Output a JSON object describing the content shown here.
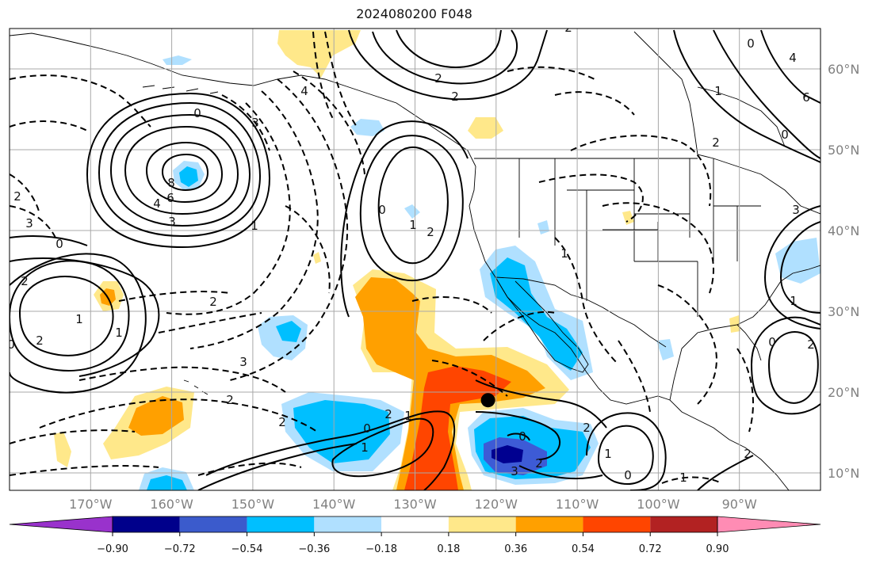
{
  "title": "2024080200 F048",
  "map": {
    "lon_labels": [
      "170°W",
      "160°W",
      "150°W",
      "140°W",
      "130°W",
      "120°W",
      "110°W",
      "100°W",
      "90°W"
    ],
    "lat_labels": [
      "60°N",
      "50°N",
      "40°N",
      "30°N",
      "20°N",
      "10°N"
    ],
    "contour_labels": [
      "2",
      "4",
      "2",
      "3",
      "2",
      "0",
      "8",
      "6",
      "4",
      "3",
      "1",
      "0",
      "2",
      "3",
      "2",
      "1",
      "0",
      "2",
      "1",
      "2",
      "3",
      "2",
      "2",
      "0",
      "1",
      "2",
      "1",
      "2",
      "0",
      "1",
      "0",
      "2",
      "3",
      "2",
      "1",
      "0",
      "1",
      "2",
      "0",
      "1",
      "2",
      "3",
      "6",
      "4",
      "0",
      "1",
      "2",
      "0",
      "1"
    ],
    "marker": {
      "name": "point-marker",
      "lon": -121,
      "lat": 19
    },
    "colors": {
      "shade_neg_1": "#b0e0ff",
      "shade_neg_2": "#00bfff",
      "shade_neg_3": "#3d5bd6",
      "shade_neg_4": "#000090",
      "shade_pos_1": "#ffe88a",
      "shade_pos_2": "#ffa000",
      "shade_pos_3": "#ff4500",
      "shade_pos_4": "#b22222"
    }
  },
  "colorbar": {
    "tick_labels": [
      "−0.90",
      "−0.72",
      "−0.54",
      "−0.36",
      "−0.18",
      "0.18",
      "0.36",
      "0.54",
      "0.72",
      "0.90"
    ],
    "colors": [
      "#9932cc",
      "#00008b",
      "#3b5bcc",
      "#00bfff",
      "#b0e0ff",
      "#ffffff",
      "#ffe88a",
      "#ffa000",
      "#ff4500",
      "#b22222",
      "#ff8cb4"
    ]
  }
}
